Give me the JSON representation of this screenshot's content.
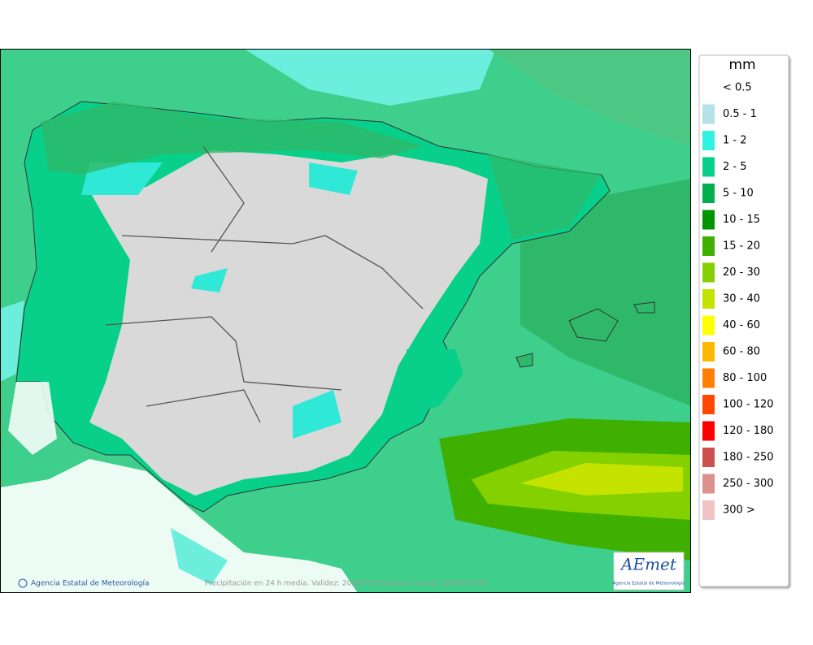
{
  "legend": {
    "unit": "mm",
    "items": [
      {
        "label": "< 0.5",
        "color": "#ffffff"
      },
      {
        "label": "0.5 - 1",
        "color": "#b4e2e6"
      },
      {
        "label": "1 - 2",
        "color": "#2ff2e0"
      },
      {
        "label": "2 - 5",
        "color": "#08d08a"
      },
      {
        "label": "5 - 10",
        "color": "#00b04c"
      },
      {
        "label": "10 - 15",
        "color": "#009400"
      },
      {
        "label": "15 - 20",
        "color": "#40b000"
      },
      {
        "label": "20 - 30",
        "color": "#84d000"
      },
      {
        "label": "30 - 40",
        "color": "#c4e400"
      },
      {
        "label": "40 - 60",
        "color": "#ffff00"
      },
      {
        "label": "60 - 80",
        "color": "#ffb800"
      },
      {
        "label": "80 - 100",
        "color": "#ff8000"
      },
      {
        "label": "100 - 120",
        "color": "#ff4800"
      },
      {
        "label": "120 - 180",
        "color": "#ff0000"
      },
      {
        "label": "180 - 250",
        "color": "#cc5050"
      },
      {
        "label": "250 - 300",
        "color": "#dc9090"
      },
      {
        "label": "300 >",
        "color": "#f0c4c4"
      }
    ]
  },
  "credit": "Agencia Estatal de Meteorología",
  "caption": "Precipitación en 24 h media. Validez: 20260413 Pasada modelo  2026041100",
  "logo": {
    "name": "AEmet",
    "subtitle": "Agencia Estatal de Meteorología"
  }
}
